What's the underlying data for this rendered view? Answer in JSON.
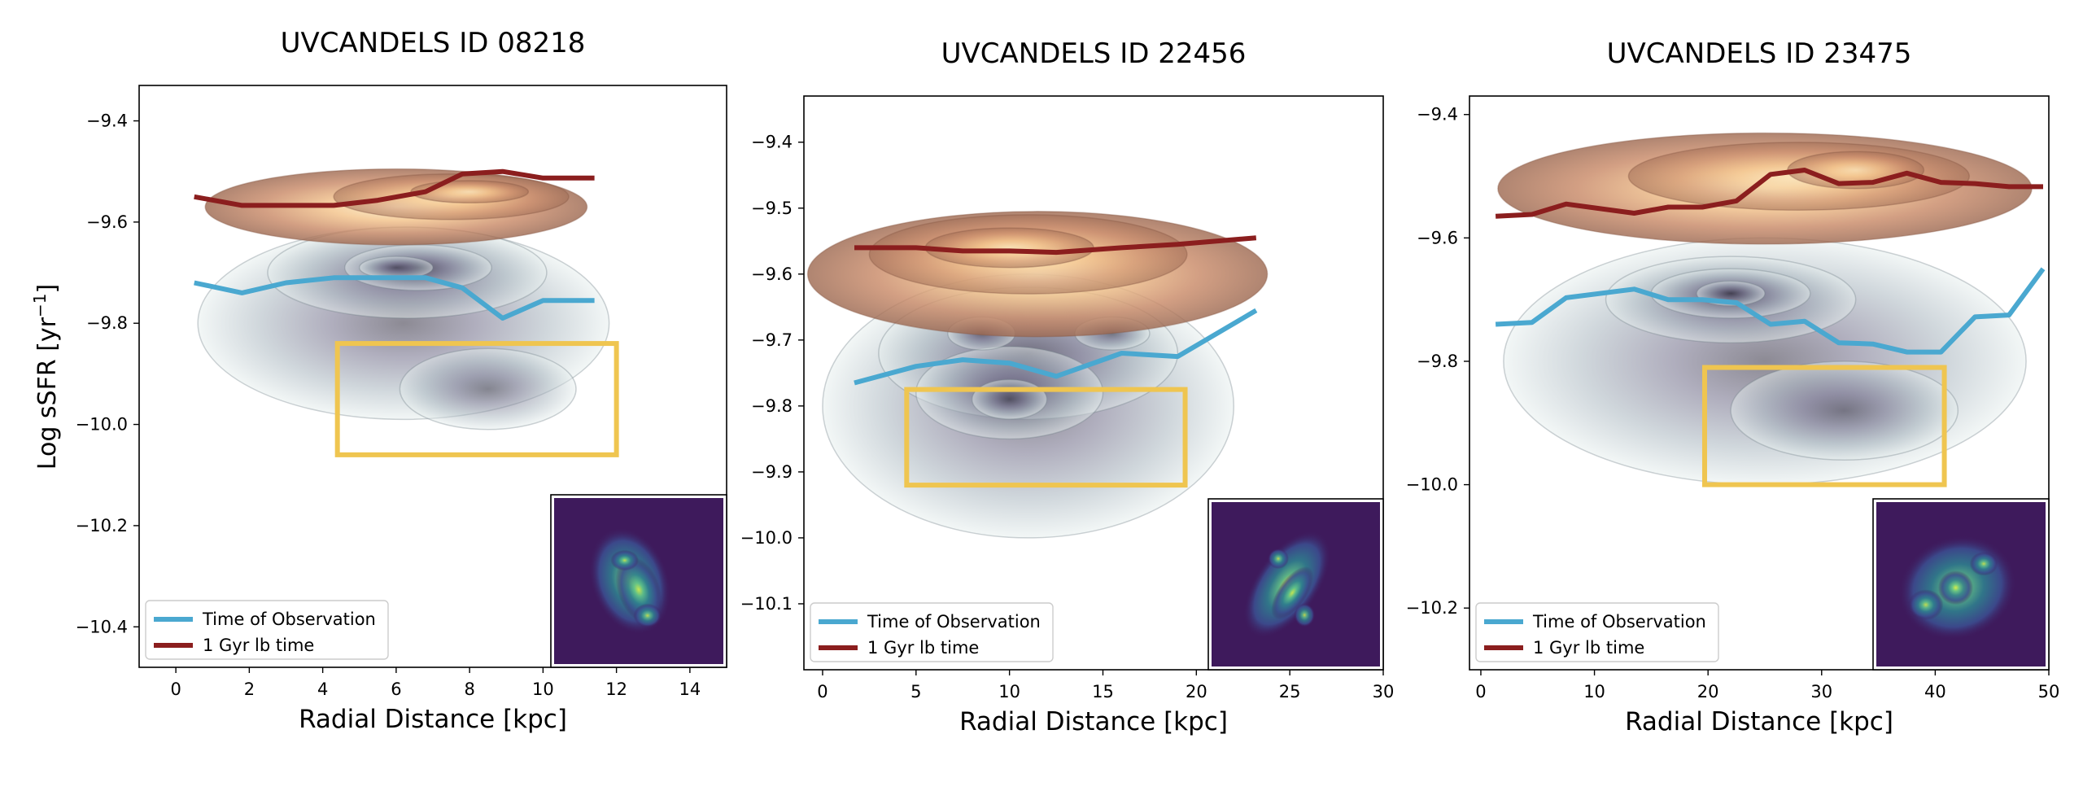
{
  "figure": {
    "ylabel": "Log sSFR [yr",
    "ylabel_sup": "−1",
    "ylabel_tail": "]"
  },
  "colors": {
    "observation": "#4aa8d0",
    "lookback": "#8b1e1e",
    "box": "#efc550",
    "contour_old_dark": "#9e6a52",
    "contour_old_light": "#fdf0c8",
    "contour_obs_dark": "#2e2a3c",
    "contour_obs_light": "#e8f0ef",
    "inset_bg": "#3e1a5c",
    "inset_glow": "#b8e04a"
  },
  "chart_data": [
    {
      "type": "line",
      "title": "UVCANDELS ID 08218",
      "xlabel": "Radial Distance [kpc]",
      "ylabel": "Log sSFR [yr⁻¹]",
      "xlim": [
        -1,
        15
      ],
      "ylim": [
        -10.48,
        -9.33
      ],
      "xticks": [
        0,
        2,
        4,
        6,
        8,
        10,
        12,
        14
      ],
      "xtick_labels": [
        "0",
        "2",
        "4",
        "6",
        "8",
        "10",
        "12",
        "14"
      ],
      "yticks": [
        -9.4,
        -9.6,
        -9.8,
        -10.0,
        -10.2,
        -10.4
      ],
      "ytick_labels": [
        "−9.4",
        "−9.6",
        "−9.8",
        "−10.0",
        "−10.2",
        "−10.4"
      ],
      "legend": [
        "Time of Observation",
        "1 Gyr lb time"
      ],
      "legend_position": "lower-left",
      "series": [
        {
          "name": "Time of Observation",
          "x": [
            0.5,
            1.8,
            3,
            4.3,
            5.5,
            6.8,
            7.8,
            8.9,
            10,
            11.4
          ],
          "y": [
            -9.72,
            -9.74,
            -9.72,
            -9.71,
            -9.71,
            -9.71,
            -9.73,
            -9.79,
            -9.755,
            -9.755
          ]
        },
        {
          "name": "1 Gyr lb time",
          "x": [
            0.5,
            1.8,
            3,
            4.3,
            5.5,
            6.8,
            7.8,
            8.9,
            10,
            11.4
          ],
          "y": [
            -9.55,
            -9.567,
            -9.567,
            -9.567,
            -9.557,
            -9.54,
            -9.505,
            -9.5,
            -9.513,
            -9.513
          ]
        }
      ],
      "highlight_box": {
        "x": [
          4.4,
          12
        ],
        "y": [
          -9.84,
          -10.06
        ]
      }
    },
    {
      "type": "line",
      "title": "UVCANDELS ID 22456",
      "xlabel": "Radial Distance [kpc]",
      "ylabel": "",
      "xlim": [
        -1,
        30
      ],
      "ylim": [
        -10.2,
        -9.33
      ],
      "xticks": [
        0,
        5,
        10,
        15,
        20,
        25,
        30
      ],
      "xtick_labels": [
        "0",
        "5",
        "10",
        "15",
        "20",
        "25",
        "30"
      ],
      "yticks": [
        -9.4,
        -9.5,
        -9.6,
        -9.7,
        -9.8,
        -9.9,
        -10.0,
        -10.1
      ],
      "ytick_labels": [
        "−9.4",
        "−9.5",
        "−9.6",
        "−9.7",
        "−9.8",
        "−9.9",
        "−10.0",
        "−10.1"
      ],
      "legend": [
        "Time of Observation",
        "1 Gyr lb time"
      ],
      "legend_position": "lower-left",
      "series": [
        {
          "name": "Time of Observation",
          "x": [
            1.7,
            5,
            7.5,
            10,
            12.5,
            16,
            19,
            23.2
          ],
          "y": [
            -9.765,
            -9.74,
            -9.73,
            -9.735,
            -9.755,
            -9.72,
            -9.725,
            -9.655
          ]
        },
        {
          "name": "1 Gyr lb time",
          "x": [
            1.7,
            5,
            7.5,
            10,
            12.5,
            16,
            19,
            23.2
          ],
          "y": [
            -9.56,
            -9.56,
            -9.565,
            -9.565,
            -9.567,
            -9.56,
            -9.555,
            -9.545
          ]
        }
      ],
      "highlight_box": {
        "x": [
          4.5,
          19.4
        ],
        "y": [
          -9.775,
          -9.92
        ]
      }
    },
    {
      "type": "line",
      "title": "UVCANDELS ID 23475",
      "xlabel": "Radial Distance [kpc]",
      "ylabel": "",
      "xlim": [
        -1,
        50
      ],
      "ylim": [
        -10.3,
        -9.37
      ],
      "xticks": [
        0,
        10,
        20,
        30,
        40,
        50
      ],
      "xtick_labels": [
        "0",
        "10",
        "20",
        "30",
        "40",
        "50"
      ],
      "yticks": [
        -9.4,
        -9.6,
        -9.8,
        -10.0,
        -10.2
      ],
      "ytick_labels": [
        "−9.4",
        "−9.6",
        "−9.8",
        "−10.0",
        "−10.2"
      ],
      "legend": [
        "Time of Observation",
        "1 Gyr lb time"
      ],
      "legend_position": "lower-left",
      "series": [
        {
          "name": "Time of Observation",
          "x": [
            1.3,
            4.5,
            7.5,
            13.5,
            16.5,
            19.5,
            22.5,
            25.5,
            28.5,
            31.5,
            34.5,
            37.5,
            40.5,
            43.5,
            46.5,
            49.5
          ],
          "y": [
            -9.74,
            -9.737,
            -9.697,
            -9.683,
            -9.7,
            -9.7,
            -9.705,
            -9.74,
            -9.735,
            -9.77,
            -9.772,
            -9.785,
            -9.785,
            -9.728,
            -9.725,
            -9.65
          ]
        },
        {
          "name": "1 Gyr lb time",
          "x": [
            1.3,
            4.5,
            7.5,
            13.5,
            16.5,
            19.5,
            22.5,
            25.5,
            28.5,
            31.5,
            34.5,
            37.5,
            40.5,
            43.5,
            46.5,
            49.5
          ],
          "y": [
            -9.565,
            -9.562,
            -9.545,
            -9.56,
            -9.55,
            -9.55,
            -9.54,
            -9.497,
            -9.49,
            -9.512,
            -9.51,
            -9.495,
            -9.51,
            -9.512,
            -9.517,
            -9.517
          ]
        }
      ],
      "highlight_box": {
        "x": [
          19.7,
          40.8
        ],
        "y": [
          -9.81,
          -10.0
        ]
      }
    }
  ]
}
